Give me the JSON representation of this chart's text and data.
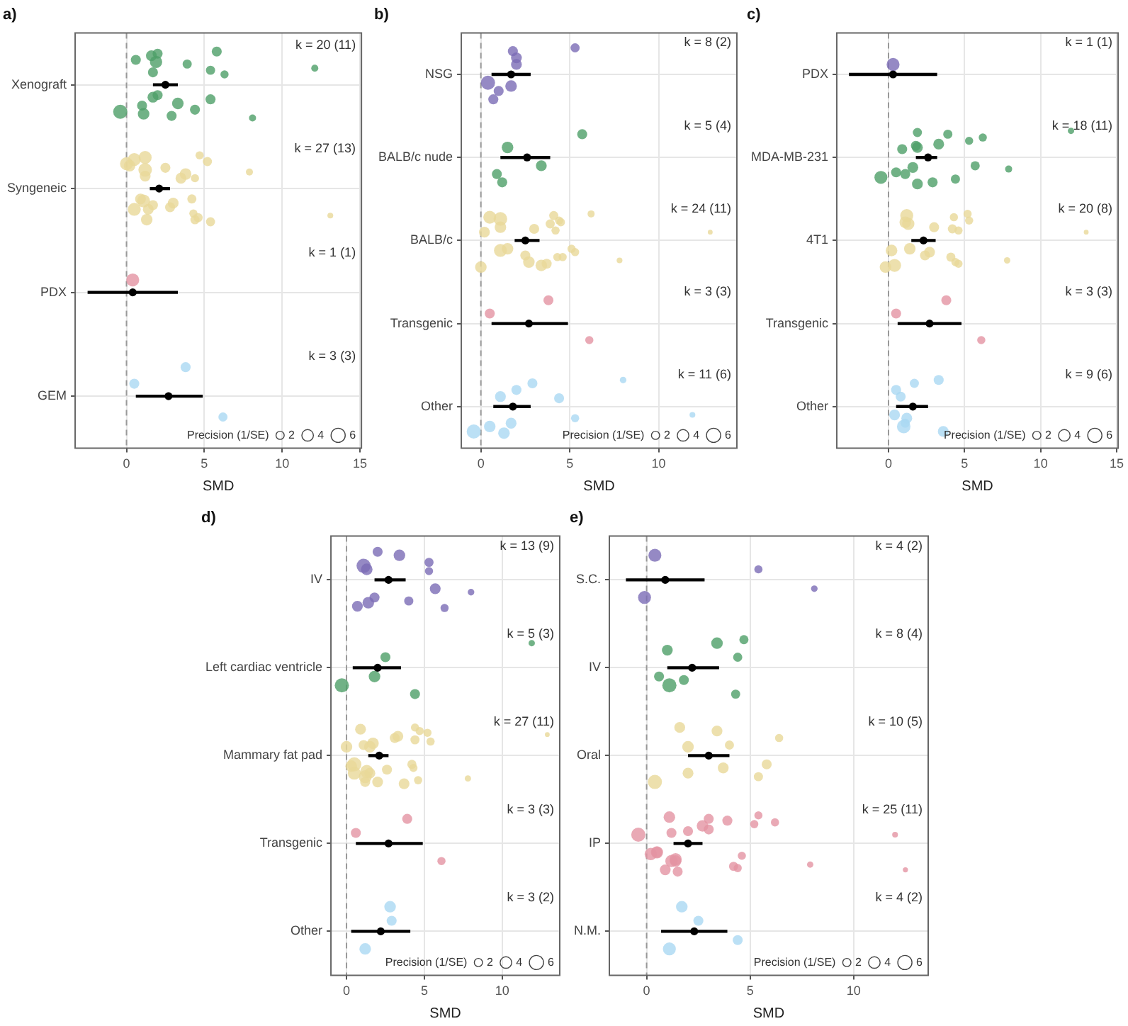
{
  "chart_data": [
    {
      "type": "bubble",
      "orientation": "horizontal",
      "title": "a)",
      "xlabel": "SMD",
      "categories": [
        "Xenograft",
        "Syngeneic",
        "PDX",
        "GEM"
      ],
      "xlim": [
        -3.3,
        15.1
      ],
      "xticks": [
        0,
        5,
        10,
        15
      ],
      "grid": true,
      "legend_title": "Precision (1/SE)",
      "size_legend": [
        2,
        4,
        6
      ],
      "ref_lines": [
        {
          "axis": "x",
          "value": 0,
          "color": "#999999",
          "line_style": "dashed"
        }
      ],
      "annotations": [
        "k = 20 (11)",
        "k = 27 (13)",
        "k = 1 (1)",
        "k = 3 (3)"
      ],
      "series": [
        {
          "color": "#4e9f68",
          "x": [
            "Xenograft",
            "Xenograft",
            "Xenograft",
            "Xenograft",
            "Xenograft",
            "Xenograft",
            "Xenograft",
            "Xenograft",
            "Xenograft",
            "Xenograft",
            "Xenograft",
            "Xenograft",
            "Xenograft",
            "Xenograft",
            "Xenograft",
            "Xenograft",
            "Xenograft",
            "Xenograft",
            "Xenograft",
            "Xenograft"
          ],
          "values": [
            1.7,
            1.0,
            1.6,
            2.0,
            2.9,
            3.9,
            5.4,
            5.8,
            4.4,
            6.3,
            8.1,
            12.1,
            -0.4,
            0.6,
            1.7,
            2.0,
            3.3,
            5.4,
            1.1,
            1.9
          ],
          "sizes": [
            3,
            3,
            3.5,
            3,
            3,
            2.5,
            3,
            3,
            3,
            2,
            1.5,
            1.5,
            6,
            3,
            3.5,
            3,
            4,
            2.5,
            4,
            4.5
          ]
        },
        {
          "color": "#e8d898",
          "x": [
            "Syngeneic",
            "Syngeneic",
            "Syngeneic",
            "Syngeneic",
            "Syngeneic",
            "Syngeneic",
            "Syngeneic",
            "Syngeneic",
            "Syngeneic",
            "Syngeneic",
            "Syngeneic",
            "Syngeneic",
            "Syngeneic",
            "Syngeneic",
            "Syngeneic",
            "Syngeneic",
            "Syngeneic",
            "Syngeneic",
            "Syngeneic",
            "Syngeneic",
            "Syngeneic",
            "Syngeneic",
            "Syngeneic",
            "Syngeneic",
            "Syngeneic",
            "Syngeneic",
            "Syngeneic"
          ],
          "values": [
            1.2,
            1.4,
            0.5,
            0.9,
            1.3,
            2.5,
            3.0,
            4.7,
            4.3,
            4.4,
            5.4,
            7.9,
            13.1,
            0,
            1.1,
            1.2,
            2.8,
            3.8,
            4.6,
            0.2,
            4.2,
            5.2,
            0.5,
            3.5,
            4.4,
            1.2,
            1.7
          ],
          "sizes": [
            3.5,
            3.5,
            5,
            3.5,
            4,
            3,
            3.5,
            2,
            2,
            2,
            2.5,
            1.5,
            1,
            5,
            5,
            5,
            3,
            4,
            2.5,
            4,
            2.5,
            2.5,
            5,
            3.5,
            2.5,
            5.5,
            3
          ]
        },
        {
          "color": "#e394a3",
          "x": [
            "PDX"
          ],
          "values": [
            0.4
          ],
          "sizes": [
            5
          ]
        },
        {
          "color": "#aad8f2",
          "x": [
            "GEM",
            "GEM",
            "GEM"
          ],
          "values": [
            0.5,
            6.2,
            3.8
          ],
          "sizes": [
            3,
            2.5,
            3
          ]
        },
        {
          "type": "scatter",
          "color": "#000000",
          "values": [
            2.5,
            2.1,
            0.4,
            2.7
          ],
          "errors": [
            [
              1.7,
              3.3
            ],
            [
              1.5,
              2.8
            ],
            [
              -2.5,
              3.3
            ],
            [
              0.6,
              4.9
            ]
          ]
        }
      ]
    },
    {
      "type": "bubble",
      "orientation": "horizontal",
      "title": "b)",
      "xlabel": "SMD",
      "categories": [
        "NSG",
        "BALB/c nude",
        "BALB/c",
        "Transgenic",
        "Other"
      ],
      "xlim": [
        -1.1,
        14.4
      ],
      "xticks": [
        0,
        5,
        10
      ],
      "grid": true,
      "legend_title": "Precision (1/SE)",
      "size_legend": [
        2,
        4,
        6
      ],
      "ref_lines": [
        {
          "axis": "x",
          "value": 0,
          "color": "#999999",
          "line_style": "dashed"
        }
      ],
      "annotations": [
        "k = 8 (2)",
        "k = 5 (4)",
        "k = 24 (11)",
        "k = 3 (3)",
        "k = 11 (6)"
      ],
      "series": [
        {
          "color": "#7b6bb5",
          "x": [
            "NSG",
            "NSG",
            "NSG",
            "NSG",
            "NSG",
            "NSG",
            "NSG",
            "NSG"
          ],
          "values": [
            2.0,
            1.0,
            1.8,
            0.4,
            0.7,
            2.0,
            1.7,
            5.3
          ],
          "sizes": [
            3.5,
            3,
            3,
            6,
            3,
            3.5,
            4,
            2.5
          ]
        },
        {
          "color": "#4e9f68",
          "x": [
            "BALB/c nude",
            "BALB/c nude",
            "BALB/c nude",
            "BALB/c nude",
            "BALB/c nude"
          ],
          "values": [
            1.5,
            0.9,
            5.7,
            3.4,
            1.2
          ],
          "sizes": [
            4,
            3,
            3,
            3.5,
            3
          ]
        },
        {
          "color": "#e8d898",
          "x": [
            "BALB/c",
            "BALB/c",
            "BALB/c",
            "BALB/c",
            "BALB/c",
            "BALB/c",
            "BALB/c",
            "BALB/c",
            "BALB/c",
            "BALB/c",
            "BALB/c",
            "BALB/c",
            "BALB/c",
            "BALB/c",
            "BALB/c",
            "BALB/c",
            "BALB/c",
            "BALB/c",
            "BALB/c",
            "BALB/c",
            "BALB/c",
            "BALB/c",
            "BALB/c",
            "BALB/c"
          ],
          "values": [
            4.2,
            4.6,
            0.5,
            1.5,
            3.4,
            3.9,
            5.3,
            6.2,
            7.8,
            12.9,
            0,
            1.1,
            2.7,
            4.4,
            1.1,
            4.1,
            2.5,
            3.0,
            3.7,
            4.5,
            5.1,
            1.1,
            4.3,
            0.2
          ],
          "sizes": [
            2,
            2,
            5,
            4,
            4,
            2.5,
            2,
            1.5,
            1,
            0.7,
            4,
            4,
            4,
            2,
            5,
            2.5,
            3,
            3,
            3,
            2,
            2,
            5.5,
            2,
            3.5
          ]
        },
        {
          "color": "#e394a3",
          "x": [
            "Transgenic",
            "Transgenic",
            "Transgenic"
          ],
          "values": [
            0.5,
            6.1,
            3.8
          ],
          "sizes": [
            3,
            2,
            3
          ]
        },
        {
          "color": "#aad8f2",
          "x": [
            "Other",
            "Other",
            "Other",
            "Other",
            "Other",
            "Other",
            "Other",
            "Other",
            "Other",
            "Other",
            "Other"
          ],
          "values": [
            1.1,
            1.7,
            2.9,
            11.9,
            -0.4,
            2.0,
            5.3,
            8.0,
            0.5,
            4.4,
            1.3
          ],
          "sizes": [
            3.5,
            3.5,
            3,
            1,
            6,
            3,
            2,
            1.3,
            4,
            3,
            4
          ]
        },
        {
          "type": "scatter",
          "color": "#000000",
          "values": [
            1.7,
            2.6,
            2.5,
            2.7,
            1.8
          ],
          "errors": [
            [
              0.6,
              2.8
            ],
            [
              1.1,
              3.9
            ],
            [
              1.9,
              3.3
            ],
            [
              0.6,
              4.9
            ],
            [
              0.7,
              2.8
            ]
          ]
        }
      ]
    },
    {
      "type": "bubble",
      "orientation": "horizontal",
      "title": "c)",
      "xlabel": "SMD",
      "categories": [
        "PDX",
        "MDA-MB-231",
        "4T1",
        "Transgenic",
        "Other"
      ],
      "xlim": [
        -3.4,
        15.1
      ],
      "xticks": [
        0,
        5,
        10,
        15
      ],
      "grid": true,
      "legend_title": "Precision (1/SE)",
      "size_legend": [
        2,
        4,
        6
      ],
      "ref_lines": [
        {
          "axis": "x",
          "value": 0,
          "color": "#999999",
          "line_style": "dashed"
        }
      ],
      "annotations": [
        "k = 1 (1)",
        "k = 18 (11)",
        "k = 20 (8)",
        "k = 3 (3)",
        "k = 9 (6)"
      ],
      "series": [
        {
          "color": "#7b6bb5",
          "x": [
            "PDX"
          ],
          "values": [
            0.3
          ],
          "sizes": [
            5
          ]
        },
        {
          "color": "#4e9f68",
          "x": [
            "MDA-MB-231",
            "MDA-MB-231",
            "MDA-MB-231",
            "MDA-MB-231",
            "MDA-MB-231",
            "MDA-MB-231",
            "MDA-MB-231",
            "MDA-MB-231",
            "MDA-MB-231",
            "MDA-MB-231",
            "MDA-MB-231",
            "MDA-MB-231",
            "MDA-MB-231",
            "MDA-MB-231",
            "MDA-MB-231",
            "MDA-MB-231",
            "MDA-MB-231",
            "MDA-MB-231"
          ],
          "values": [
            1.9,
            1.1,
            3.9,
            5.7,
            2.9,
            5.3,
            7.9,
            12.0,
            -0.5,
            0.9,
            1.9,
            3.3,
            4.4,
            6.2,
            1.6,
            1.9,
            0.5,
            1.8
          ],
          "sizes": [
            3.5,
            3,
            2.5,
            2.5,
            3,
            2,
            1.5,
            1.2,
            5,
            3,
            3.5,
            3.5,
            2.5,
            2,
            3.5,
            2.5,
            3,
            3
          ]
        },
        {
          "color": "#e8d898",
          "x": [
            "4T1",
            "4T1",
            "4T1",
            "4T1",
            "4T1",
            "4T1",
            "4T1",
            "4T1",
            "4T1",
            "4T1",
            "4T1",
            "4T1",
            "4T1",
            "4T1",
            "4T1",
            "4T1",
            "4T1",
            "4T1",
            "4T1",
            "4T1"
          ],
          "values": [
            4.6,
            4.1,
            4.3,
            1.4,
            0.4,
            1.3,
            2.7,
            5.2,
            7.8,
            13.0,
            -0.2,
            3.0,
            4.4,
            5.3,
            0.2,
            1.2,
            2.4,
            4.2,
            4.6,
            1.1
          ],
          "sizes": [
            2,
            2.5,
            2,
            4,
            5,
            4.5,
            3.5,
            2,
            1.2,
            0.7,
            4,
            3,
            2,
            2,
            4,
            5,
            3,
            2.5,
            2,
            4
          ]
        },
        {
          "color": "#e394a3",
          "x": [
            "Transgenic",
            "Transgenic",
            "Transgenic"
          ],
          "values": [
            0.5,
            6.1,
            3.8
          ],
          "sizes": [
            3,
            2,
            3
          ]
        },
        {
          "color": "#aad8f2",
          "x": [
            "Other",
            "Other",
            "Other",
            "Other",
            "Other",
            "Other",
            "Other",
            "Other",
            "Other"
          ],
          "values": [
            0.8,
            1.1,
            1.7,
            0.4,
            3.6,
            0.5,
            1.2,
            3.3,
            1.0
          ],
          "sizes": [
            3,
            2.5,
            2.5,
            3.5,
            3.5,
            3,
            3.5,
            3,
            5.5
          ]
        },
        {
          "type": "scatter",
          "color": "#000000",
          "values": [
            0.3,
            2.6,
            2.3,
            2.7,
            1.6
          ],
          "errors": [
            [
              -2.6,
              3.2
            ],
            [
              1.8,
              3.2
            ],
            [
              1.5,
              3.1
            ],
            [
              0.6,
              4.8
            ],
            [
              0.5,
              2.6
            ]
          ]
        }
      ]
    },
    {
      "type": "bubble",
      "orientation": "horizontal",
      "title": "d)",
      "xlabel": "SMD",
      "categories": [
        "IV",
        "Left cardiac ventricle",
        "Mammary fat pad",
        "Transgenic",
        "Other"
      ],
      "xlim": [
        -1,
        13.7
      ],
      "xticks": [
        0,
        5,
        10
      ],
      "grid": true,
      "legend_title": "Precision (1/SE)",
      "size_legend": [
        2,
        4,
        6
      ],
      "ref_lines": [
        {
          "axis": "x",
          "value": 0,
          "color": "#999999",
          "line_style": "dashed"
        }
      ],
      "annotations": [
        "k = 13 (9)",
        "k = 5 (3)",
        "k = 27 (11)",
        "k = 3 (3)",
        "k = 3 (2)"
      ],
      "series": [
        {
          "color": "#7b6bb5",
          "x": [
            "IV",
            "IV",
            "IV",
            "IV",
            "IV",
            "IV",
            "IV",
            "IV",
            "IV",
            "IV",
            "IV",
            "IV",
            "IV"
          ],
          "values": [
            1.3,
            1.8,
            3.4,
            5.7,
            0.7,
            5.3,
            8.0,
            2.0,
            4.0,
            5.3,
            6.3,
            1.1,
            1.4
          ],
          "sizes": [
            4,
            3,
            4,
            3.5,
            3.5,
            2.5,
            1.3,
            3,
            2.5,
            2,
            2,
            6,
            4
          ]
        },
        {
          "color": "#4e9f68",
          "x": [
            "Left cardiac ventricle",
            "Left cardiac ventricle",
            "Left cardiac ventricle",
            "Left cardiac ventricle",
            "Left cardiac ventricle"
          ],
          "values": [
            2.5,
            -0.3,
            11.9,
            1.8,
            4.4
          ],
          "sizes": [
            3,
            6,
            1.2,
            4,
            3
          ]
        },
        {
          "color": "#e8d898",
          "x": [
            "Mammary fat pad",
            "Mammary fat pad",
            "Mammary fat pad",
            "Mammary fat pad",
            "Mammary fat pad",
            "Mammary fat pad",
            "Mammary fat pad",
            "Mammary fat pad",
            "Mammary fat pad",
            "Mammary fat pad",
            "Mammary fat pad",
            "Mammary fat pad",
            "Mammary fat pad",
            "Mammary fat pad",
            "Mammary fat pad",
            "Mammary fat pad",
            "Mammary fat pad",
            "Mammary fat pad",
            "Mammary fat pad",
            "Mammary fat pad",
            "Mammary fat pad",
            "Mammary fat pad",
            "Mammary fat pad",
            "Mammary fat pad",
            "Mammary fat pad",
            "Mammary fat pad",
            "Mammary fat pad"
          ],
          "values": [
            1.1,
            1.5,
            4.7,
            0.5,
            2.0,
            3.1,
            4.3,
            4.4,
            1.2,
            0,
            3.7,
            5.4,
            7.8,
            12.9,
            0.3,
            0.9,
            1.3,
            1.7,
            4.6,
            3.3,
            4.2,
            5.2,
            0.5,
            1.5,
            1.2,
            4.4,
            2.6
          ],
          "sizes": [
            3,
            3.5,
            2,
            6,
            3.5,
            3,
            2,
            2,
            5,
            4,
            3.5,
            2,
            1.2,
            0.7,
            4,
            3.5,
            5,
            4,
            2,
            3.5,
            2.5,
            2,
            5,
            4,
            3,
            2.5,
            3
          ]
        },
        {
          "color": "#e394a3",
          "x": [
            "Transgenic",
            "Transgenic",
            "Transgenic"
          ],
          "values": [
            0.6,
            6.1,
            3.9
          ],
          "sizes": [
            3,
            2,
            3
          ]
        },
        {
          "color": "#aad8f2",
          "x": [
            "Other",
            "Other",
            "Other"
          ],
          "values": [
            2.9,
            1.2,
            2.8
          ],
          "sizes": [
            3,
            4,
            4
          ]
        },
        {
          "type": "scatter",
          "color": "#000000",
          "values": [
            2.7,
            2.0,
            2.1,
            2.7,
            2.2
          ],
          "errors": [
            [
              1.8,
              3.8
            ],
            [
              0.4,
              3.5
            ],
            [
              1.4,
              2.7
            ],
            [
              0.6,
              4.9
            ],
            [
              0.3,
              4.1
            ]
          ]
        }
      ]
    },
    {
      "type": "bubble",
      "orientation": "horizontal",
      "title": "e)",
      "xlabel": "SMD",
      "categories": [
        "S.C.",
        "IV",
        "Oral",
        "IP",
        "N.M."
      ],
      "xlim": [
        -1.8,
        13.6
      ],
      "xticks": [
        0,
        5,
        10
      ],
      "grid": true,
      "legend_title": "Precision (1/SE)",
      "size_legend": [
        2,
        4,
        6
      ],
      "ref_lines": [
        {
          "axis": "x",
          "value": 0,
          "color": "#999999",
          "line_style": "dashed"
        }
      ],
      "annotations": [
        "k = 4 (2)",
        "k = 8 (4)",
        "k = 10 (5)",
        "k = 25 (11)",
        "k = 4 (2)"
      ],
      "series": [
        {
          "color": "#7b6bb5",
          "x": [
            "S.C.",
            "S.C.",
            "S.C.",
            "S.C."
          ],
          "values": [
            5.4,
            -0.1,
            0.4,
            8.1
          ],
          "sizes": [
            2,
            5,
            5,
            1.3
          ]
        },
        {
          "color": "#4e9f68",
          "x": [
            "IV",
            "IV",
            "IV",
            "IV",
            "IV",
            "IV",
            "IV",
            "IV"
          ],
          "values": [
            4.4,
            1.1,
            3.4,
            0.6,
            4.3,
            1.0,
            1.8,
            4.7
          ],
          "sizes": [
            2.5,
            6,
            4,
            3,
            2.5,
            3.5,
            3,
            2.5
          ]
        },
        {
          "color": "#e8d898",
          "x": [
            "Oral",
            "Oral",
            "Oral",
            "Oral",
            "Oral",
            "Oral",
            "Oral",
            "Oral",
            "Oral",
            "Oral"
          ],
          "values": [
            4.0,
            2.0,
            3.4,
            5.8,
            0.4,
            6.4,
            3.7,
            1.6,
            5.4,
            2.0
          ],
          "sizes": [
            2.5,
            3.5,
            3.5,
            3,
            6,
            2,
            3.5,
            3.5,
            2.5,
            4
          ]
        },
        {
          "color": "#e394a3",
          "x": [
            "IP",
            "IP",
            "IP",
            "IP",
            "IP",
            "IP",
            "IP",
            "IP",
            "IP",
            "IP",
            "IP",
            "IP",
            "IP",
            "IP",
            "IP",
            "IP",
            "IP",
            "IP",
            "IP",
            "IP",
            "IP",
            "IP",
            "IP",
            "IP",
            "IP"
          ],
          "values": [
            1.2,
            1.4,
            3.0,
            0.5,
            0.9,
            2.7,
            4.6,
            5.4,
            7.9,
            -0.4,
            1.5,
            3.0,
            4.2,
            6.2,
            0.2,
            1.1,
            1.4,
            2.0,
            4.4,
            5.2,
            0.5,
            3.9,
            1.2,
            12.0,
            12.5
          ],
          "sizes": [
            3,
            4,
            3,
            4.5,
            3.5,
            4,
            2,
            2,
            1.2,
            6,
            3,
            3,
            2.5,
            2,
            4.5,
            4,
            4.5,
            3,
            2,
            2,
            3.5,
            3,
            4.5,
            1,
            0.8
          ]
        },
        {
          "color": "#aad8f2",
          "x": [
            "N.M.",
            "N.M.",
            "N.M.",
            "N.M."
          ],
          "values": [
            2.5,
            1.1,
            1.7,
            4.4
          ],
          "sizes": [
            3,
            5,
            4,
            3
          ]
        },
        {
          "type": "scatter",
          "color": "#000000",
          "values": [
            0.9,
            2.2,
            3.0,
            2.0,
            2.3
          ],
          "errors": [
            [
              -1.0,
              2.8
            ],
            [
              1.0,
              3.5
            ],
            [
              2.0,
              4.0
            ],
            [
              1.3,
              2.7
            ],
            [
              0.7,
              3.9
            ]
          ]
        }
      ]
    }
  ]
}
